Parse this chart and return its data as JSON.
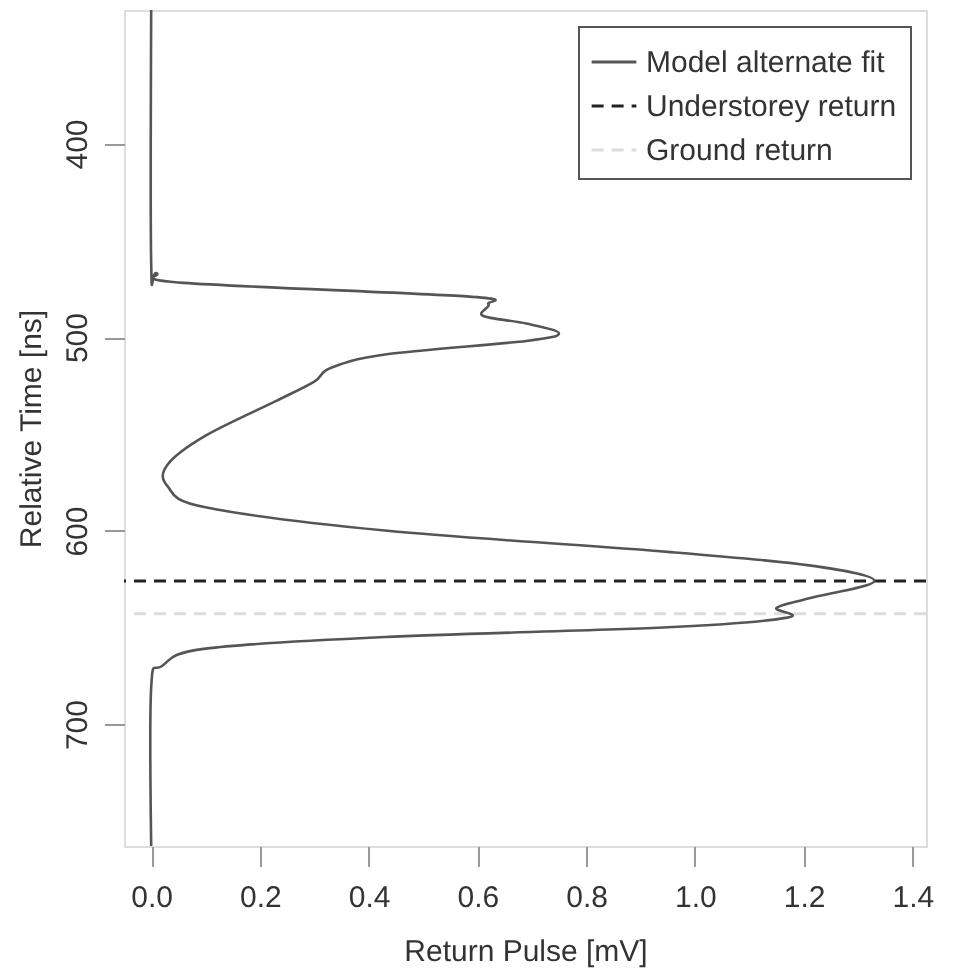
{
  "chart_data": {
    "type": "line",
    "orientation": "horizontal",
    "xlabel": "Return Pulse [mV]",
    "ylabel": "Relative Time [ns]",
    "x": [
      331,
      462,
      467,
      472,
      479,
      483,
      489,
      493,
      498,
      502,
      509,
      516,
      523,
      533,
      551,
      566,
      577,
      588,
      600,
      611,
      618,
      626,
      635,
      640,
      645,
      650,
      655,
      661,
      670,
      681,
      763
    ],
    "series": [
      {
        "name": "Model alternate fit",
        "color": "#555555",
        "line_style": "solid",
        "values": [
          0.0,
          0.0,
          0.01,
          0.06,
          0.58,
          0.62,
          0.61,
          0.69,
          0.75,
          0.69,
          0.43,
          0.33,
          0.3,
          0.23,
          0.1,
          0.03,
          0.03,
          0.1,
          0.43,
          0.95,
          1.21,
          1.33,
          1.21,
          1.15,
          1.17,
          0.95,
          0.43,
          0.1,
          0.02,
          0.0,
          0.0
        ]
      }
    ],
    "ref_lines": [
      {
        "axis": "y",
        "value": 626,
        "label": "Understorey return",
        "color": "#222222",
        "line_style": "dashed"
      },
      {
        "axis": "y",
        "value": 643,
        "label": "Ground return",
        "color": "#dddddd",
        "line_style": "dashed"
      }
    ],
    "xlim": [
      -0.05,
      1.425
    ],
    "xticks": [
      {
        "value": 0.0,
        "label": "0.0"
      },
      {
        "value": 0.2,
        "label": "0.2"
      },
      {
        "value": 0.4,
        "label": "0.4"
      },
      {
        "value": 0.6,
        "label": "0.6"
      },
      {
        "value": 0.8,
        "label": "0.8"
      },
      {
        "value": 1.0,
        "label": "1.0"
      },
      {
        "value": 1.2,
        "label": "1.2"
      },
      {
        "value": 1.4,
        "label": "1.4"
      }
    ],
    "ylim": [
      763,
      331
    ],
    "yticks": [
      400,
      500,
      600,
      700
    ],
    "grid": false,
    "legend": "top right",
    "marker": "none"
  }
}
